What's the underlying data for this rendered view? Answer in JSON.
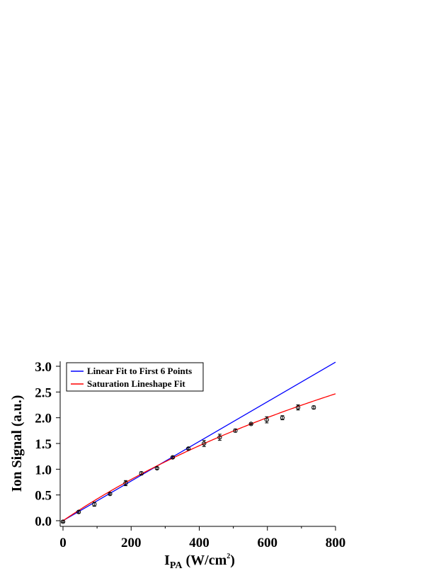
{
  "chart_data": {
    "type": "scatter",
    "xlabel_main": "I",
    "xlabel_sub": "PA",
    "xlabel_unit_pre": " (W/cm",
    "xlabel_unit_sup": "2",
    "xlabel_unit_post": ")",
    "ylabel": "Ion Signal (a.u.)",
    "xlim": [
      0,
      800
    ],
    "ylim": [
      0,
      3.0
    ],
    "x_ticks": [
      0,
      200,
      400,
      600,
      800
    ],
    "x_tick_labels": [
      "0",
      "200",
      "400",
      "600",
      "800"
    ],
    "y_ticks": [
      0,
      0.5,
      1.0,
      1.5,
      2.0,
      2.5,
      3.0
    ],
    "y_tick_labels": [
      "0.0",
      "0.5",
      "1.0",
      "1.5",
      "2.0",
      "2.5",
      "3.0"
    ],
    "grid": false,
    "legend_position": "top-left",
    "data_points": {
      "x": [
        0,
        46,
        92,
        138,
        184,
        230,
        276,
        322,
        368,
        414,
        460,
        506,
        552,
        598,
        644,
        690,
        736
      ],
      "y": [
        -0.02,
        0.17,
        0.32,
        0.52,
        0.73,
        0.92,
        1.02,
        1.23,
        1.4,
        1.5,
        1.62,
        1.75,
        1.88,
        1.96,
        2.0,
        2.2,
        2.2
      ],
      "err": [
        0.01,
        0.02,
        0.04,
        0.02,
        0.05,
        0.03,
        0.02,
        0.02,
        0.02,
        0.06,
        0.06,
        0.03,
        0.01,
        0.06,
        0.04,
        0.05,
        0.03
      ]
    },
    "series": [
      {
        "name": "Linear Fit to First 6 Points",
        "color": "#0000ff",
        "slope": 0.00385
      },
      {
        "name": "Saturation Lineshape Fit",
        "color": "#ff0000",
        "a": 0.00445,
        "b": 0.000555
      }
    ],
    "marker_color": "#000000"
  }
}
